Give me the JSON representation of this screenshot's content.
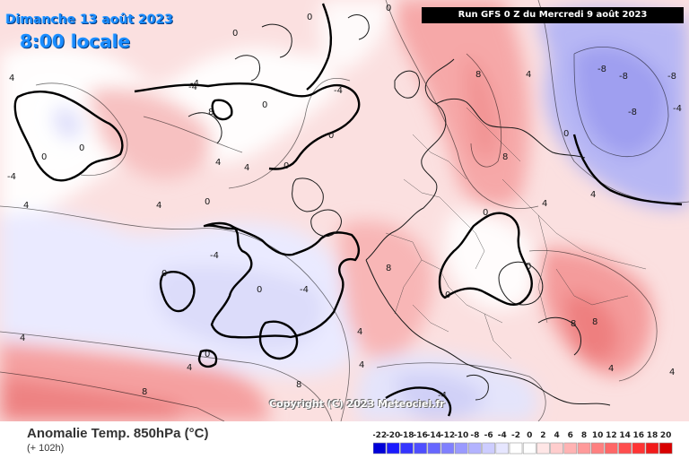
{
  "header": {
    "date": "Dimanche 13 août 2023",
    "time": "8:00 locale",
    "run": "Run GFS 0 Z du Mercredi 9 août 2023"
  },
  "copyright": "Copyright (C) 2023 Meteociel.fr",
  "footer": {
    "title": "Anomalie Temp. 850hPa (°C)",
    "subtitle": "(+ 102h)"
  },
  "legend": {
    "ticks": [
      "-22",
      "-20",
      "-18",
      "-16",
      "-14",
      "-12",
      "-10",
      "-8",
      "-6",
      "-4",
      "-2",
      "0",
      "2",
      "4",
      "6",
      "8",
      "10",
      "12",
      "14",
      "16",
      "18",
      "20"
    ],
    "colors": [
      "#0000d8",
      "#1a1aff",
      "#3434ff",
      "#4e4eff",
      "#6767ff",
      "#8080ff",
      "#9a9aff",
      "#b3b3ff",
      "#cdcdff",
      "#e6e6ff",
      "#ffffff",
      "#ffffff",
      "#ffe6e6",
      "#ffcdcd",
      "#ffb3b3",
      "#ff9a9a",
      "#ff8080",
      "#ff6767",
      "#ff4e4e",
      "#ff3434",
      "#f21a1a",
      "#d80000"
    ]
  },
  "contour_labels": [
    "0",
    "0",
    "0",
    "0",
    "0",
    "0",
    "0",
    "0",
    "0",
    "0",
    "0",
    "4",
    "4",
    "4",
    "4",
    "4",
    "4",
    "4",
    "4",
    "4",
    "8",
    "8",
    "8",
    "8",
    "8",
    "8",
    "-4",
    "-4",
    "-4",
    "-4",
    "-4",
    "-4",
    "-8",
    "-8",
    "-8",
    "-8",
    "-4",
    "4",
    "8",
    "0",
    "0",
    "4",
    "-4",
    "0",
    "8",
    "4",
    "0",
    "4",
    "0",
    "4"
  ]
}
